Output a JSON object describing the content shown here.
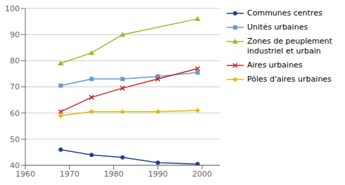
{
  "chart_data": {
    "type": "line",
    "series": [
      {
        "name": "Communes centres",
        "color": "#1F3E8C",
        "marker": "circle",
        "x": [
          1968,
          1975,
          1982,
          1990,
          1999
        ],
        "values": [
          46,
          44,
          43,
          41,
          40.5
        ]
      },
      {
        "name": "Unités urbaines",
        "color": "#6699CC",
        "marker": "square",
        "x": [
          1968,
          1975,
          1982,
          1990,
          1999
        ],
        "values": [
          70.5,
          73,
          73,
          74,
          75.5
        ]
      },
      {
        "name": "Zones de peuplement\nindustriel et urbain",
        "color": "#99BB22",
        "marker": "triangle",
        "x": [
          1968,
          1975,
          1982,
          1999
        ],
        "values": [
          79,
          83,
          90,
          96
        ]
      },
      {
        "name": "Aires urbaines",
        "color": "#CC2222",
        "marker": "cross",
        "x": [
          1968,
          1975,
          1982,
          1990,
          1999
        ],
        "values": [
          60.5,
          66,
          69.5,
          73,
          77
        ]
      },
      {
        "name": "Pôles d'aires urbaines",
        "color": "#DDBB00",
        "marker": "diamond",
        "x": [
          1968,
          1975,
          1982,
          1990,
          1999
        ],
        "values": [
          59,
          60.5,
          60.5,
          60.5,
          61
        ]
      }
    ],
    "xlim": [
      1960,
      2004
    ],
    "xticks": [
      1960,
      1970,
      1980,
      1990,
      2000
    ],
    "ylim": [
      40,
      100
    ],
    "yticks": [
      40,
      50,
      60,
      70,
      80,
      90,
      100
    ],
    "grid": "y",
    "legend": "right"
  }
}
